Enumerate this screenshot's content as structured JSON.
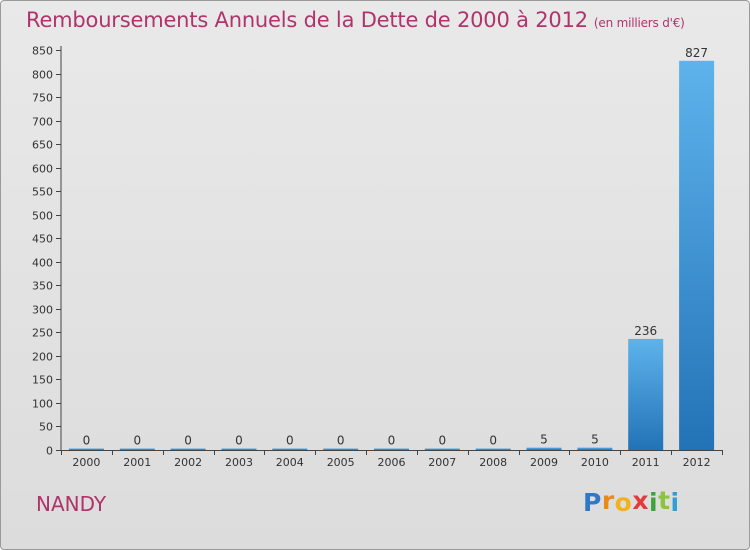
{
  "title": "Remboursements Annuels de la Dette de 2000 à 2012",
  "subtitle": "(en milliers d'€)",
  "city": "NANDY",
  "logo": {
    "letters": [
      "P",
      "r",
      "o",
      "x",
      "i",
      "t",
      "i"
    ],
    "colors": [
      "#2f78c8",
      "#e8891c",
      "#f0b21e",
      "#e23b3b",
      "#3aa63a",
      "#8bc53f",
      "#2f9fd8"
    ]
  },
  "colors": {
    "bar_light": "#5eb3ec",
    "bar_dark": "#2273b6",
    "title": "#b0336c"
  },
  "chart_data": {
    "type": "bar",
    "title": "Remboursements Annuels de la Dette de 2000 à 2012",
    "subtitle": "(en milliers d'€)",
    "categories": [
      "2000",
      "2001",
      "2002",
      "2003",
      "2004",
      "2005",
      "2006",
      "2007",
      "2008",
      "2009",
      "2010",
      "2011",
      "2012"
    ],
    "values": [
      0,
      0,
      0,
      0,
      0,
      0,
      0,
      0,
      0,
      5,
      5,
      236,
      827
    ],
    "ylim": [
      0,
      850
    ],
    "yticks": [
      0,
      50,
      100,
      150,
      200,
      250,
      300,
      350,
      400,
      450,
      500,
      550,
      600,
      650,
      700,
      750,
      800,
      850
    ],
    "grid": false,
    "legend": "none"
  }
}
